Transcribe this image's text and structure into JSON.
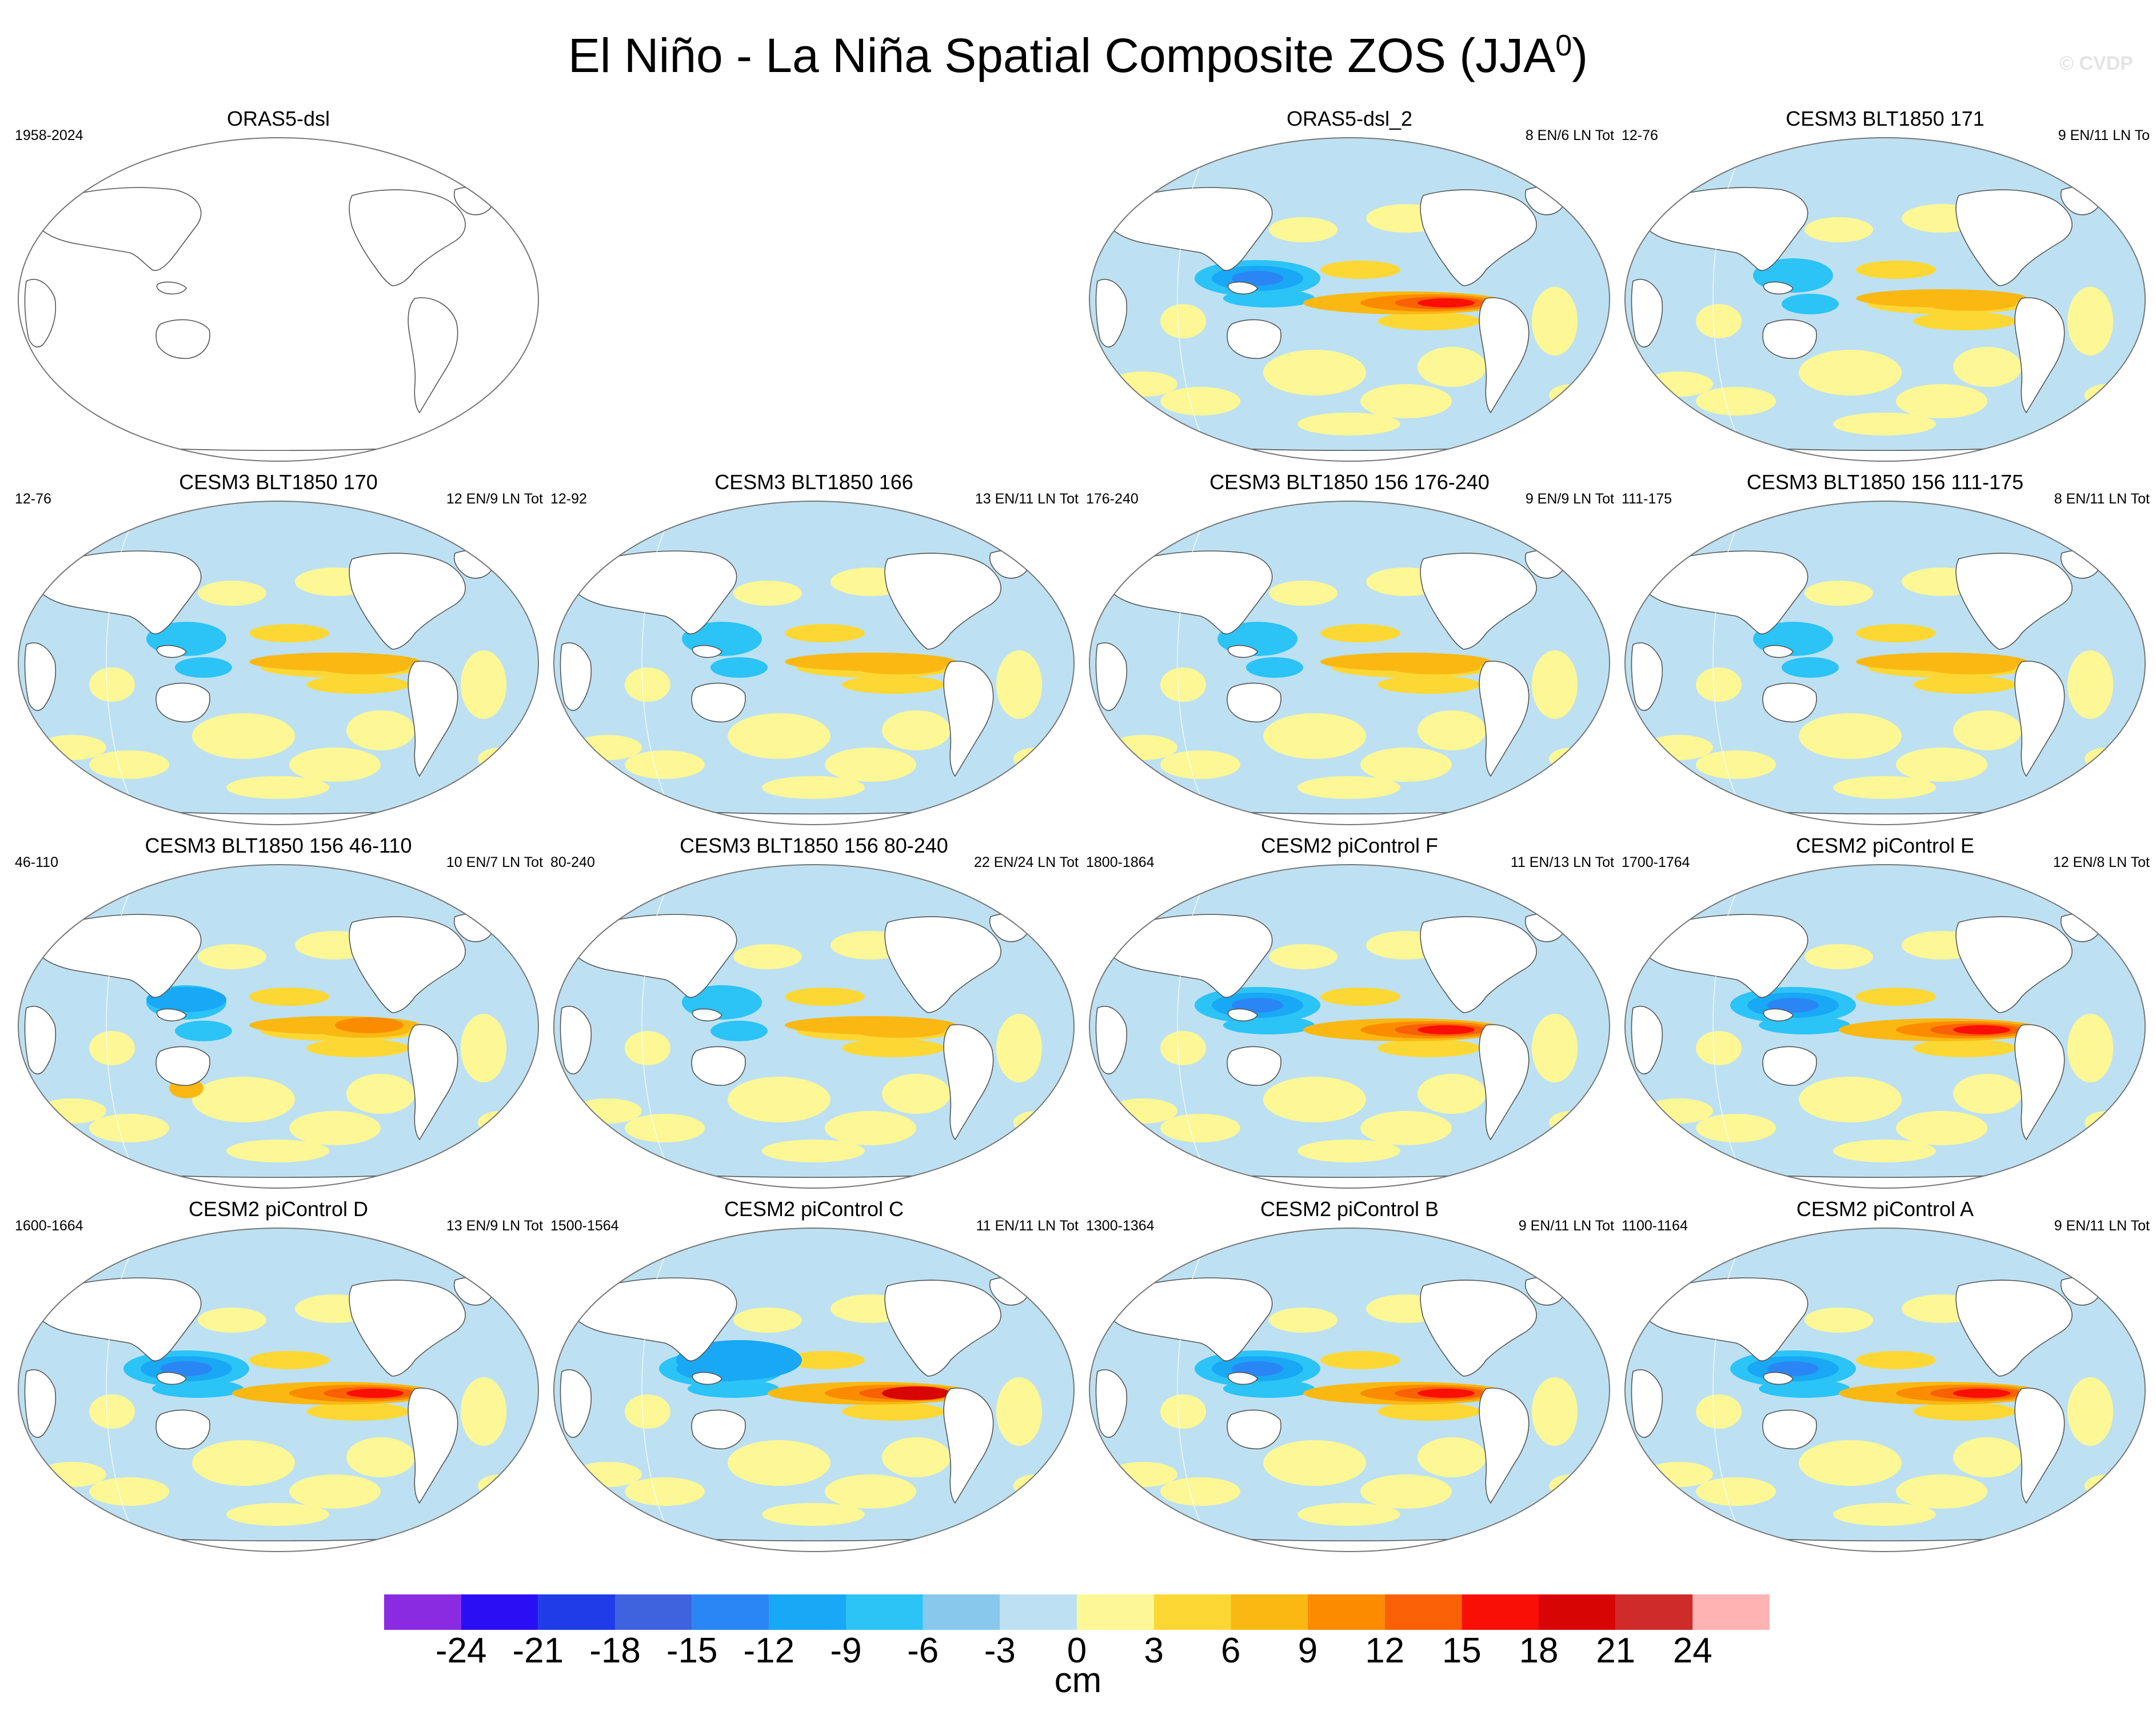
{
  "figure": {
    "title": "El Niño - La Niña Spatial Composite ZOS (JJA",
    "title_superscript": "0",
    "title_suffix": ")",
    "watermark": "© CVDP"
  },
  "panels": [
    {
      "title": "ORAS5-dsl",
      "left_label": "1958-2024",
      "right_label": "",
      "blank": true,
      "style": "none"
    },
    {
      "title": "ORAS5-dsl_2",
      "left_label": "",
      "right_label": "8 EN/6 LN Tot",
      "blank": false,
      "style": "obs"
    },
    {
      "title": "CESM3 BLT1850 171",
      "left_label": "12-76",
      "right_label": "9 EN/11 LN To",
      "blank": false,
      "style": "weak"
    },
    {
      "title": "CESM3 BLT1850 170",
      "left_label": "12-76",
      "right_label": "12 EN/9 LN Tot",
      "blank": false,
      "style": "weak"
    },
    {
      "title": "CESM3 BLT1850 166",
      "left_label": "12-92",
      "right_label": "13 EN/11 LN Tot",
      "blank": false,
      "style": "weak"
    },
    {
      "title": "CESM3 BLT1850 156 176-240",
      "left_label": "176-240",
      "right_label": "9 EN/9 LN Tot",
      "blank": false,
      "style": "weak"
    },
    {
      "title": "CESM3 BLT1850 156 111-175",
      "left_label": "111-175",
      "right_label": "8 EN/11 LN Tot",
      "blank": false,
      "style": "weak"
    },
    {
      "title": "CESM3 BLT1850 156 46-110",
      "left_label": "46-110",
      "right_label": "10 EN/7 LN Tot",
      "blank": false,
      "style": "medium"
    },
    {
      "title": "CESM3 BLT1850 156 80-240",
      "left_label": "80-240",
      "right_label": "22 EN/24 LN Tot",
      "blank": false,
      "style": "weak"
    },
    {
      "title": "CESM2 piControl F",
      "left_label": "1800-1864",
      "right_label": "11 EN/13 LN Tot",
      "blank": false,
      "style": "strong"
    },
    {
      "title": "CESM2 piControl E",
      "left_label": "1700-1764",
      "right_label": "12 EN/8 LN Tot",
      "blank": false,
      "style": "strong"
    },
    {
      "title": "CESM2 piControl D",
      "left_label": "1600-1664",
      "right_label": "13 EN/9 LN Tot",
      "blank": false,
      "style": "strong"
    },
    {
      "title": "CESM2 piControl C",
      "left_label": "1500-1564",
      "right_label": "11 EN/11 LN Tot",
      "blank": false,
      "style": "strongest"
    },
    {
      "title": "CESM2 piControl B",
      "left_label": "1300-1364",
      "right_label": "9 EN/11 LN Tot",
      "blank": false,
      "style": "strong"
    },
    {
      "title": "CESM2 piControl A",
      "left_label": "1100-1164",
      "right_label": "9 EN/11 LN Tot",
      "blank": false,
      "style": "strong"
    }
  ],
  "colorbar": {
    "units": "cm",
    "labels": [
      "-24",
      "-21",
      "-18",
      "-15",
      "-12",
      "-9",
      "-6",
      "-3",
      "0",
      "3",
      "6",
      "9",
      "12",
      "15",
      "18",
      "21",
      "24"
    ],
    "colors": [
      "#8a2be2",
      "#2a0ff5",
      "#1f3ce8",
      "#3f63de",
      "#2b86f5",
      "#18a8f5",
      "#2cc3f7",
      "#87c8ec",
      "#bde1f2",
      "#fdf796",
      "#fdd835",
      "#fbb813",
      "#fb8c00",
      "#fa6006",
      "#f90f05",
      "#d80505",
      "#cf2b2b",
      "#ffb3b3"
    ]
  }
}
